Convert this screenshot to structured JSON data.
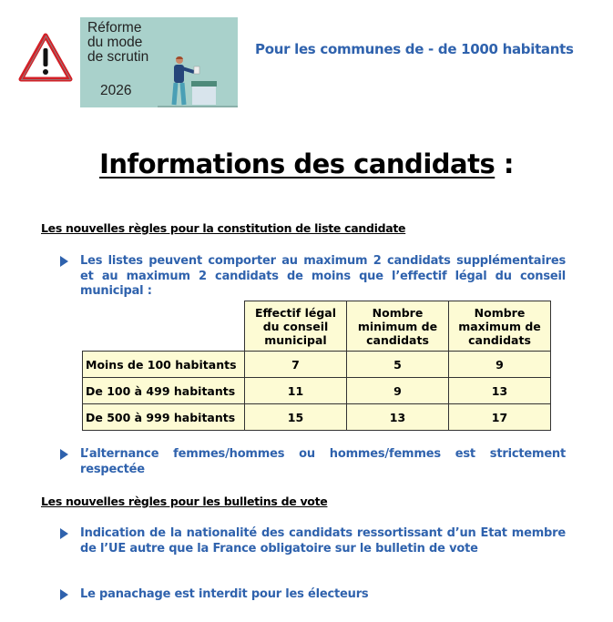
{
  "header": {
    "poster": {
      "line1": "Réforme",
      "line2": "du mode",
      "line3": "de scrutin",
      "year": "2026"
    },
    "subtitle": "Pour les communes de - de 1000 habitants"
  },
  "title": {
    "text": "Informations des candidats",
    "suffix": " :"
  },
  "sections": [
    {
      "heading": "Les nouvelles règles pour la constitution de liste candidate",
      "bullets": [
        "Les listes peuvent comporter au maximum 2 candidats supplémentaires et au maximum 2 candidats de moins que l’effectif légal du conseil municipal :",
        "L’alternance femmes/hommes ou hommes/femmes est strictement respectée"
      ]
    },
    {
      "heading": "Les nouvelles règles pour les bulletins de vote",
      "bullets": [
        "Indication de la nationalité des candidats ressortissant d’un Etat membre de l’UE autre que la France obligatoire sur le bulletin de vote",
        "Le panachage est interdit pour les électeurs"
      ]
    }
  ],
  "table": {
    "headers": [
      "Effectif légal du conseil municipal",
      "Nombre minimum de candidats",
      "Nombre maximum de candidats"
    ],
    "rows": [
      {
        "label": "Moins de 100 habitants",
        "values": [
          "7",
          "5",
          "9"
        ]
      },
      {
        "label": "De 100 à 499 habitants",
        "values": [
          "11",
          "9",
          "13"
        ]
      },
      {
        "label": "De 500 à 999 habitants",
        "values": [
          "15",
          "13",
          "17"
        ]
      }
    ]
  },
  "colors": {
    "accent": "#2f62ad",
    "table_fill": "#fdfbd4",
    "poster_bg": "#a9d1cb",
    "warning_red": "#d32027"
  }
}
